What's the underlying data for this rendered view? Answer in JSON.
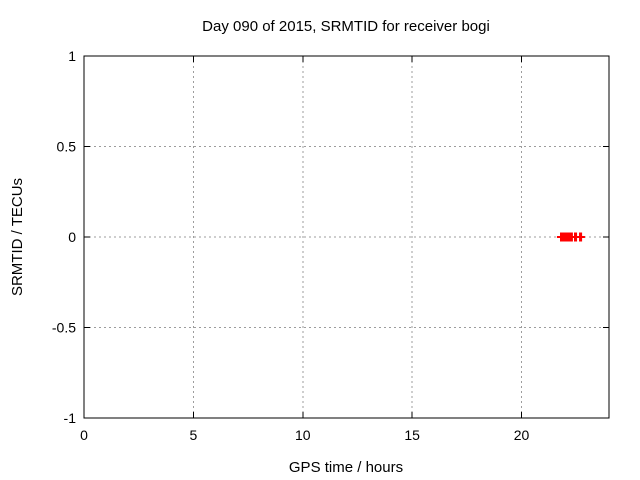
{
  "page": {
    "background": "#ffffff"
  },
  "chart_data": {
    "type": "scatter",
    "title": "Day 090 of 2015, SRMTID for receiver bogi",
    "xlabel": "GPS time / hours",
    "ylabel": "SRMTID / TECUs",
    "xlim": [
      0,
      24
    ],
    "ylim": [
      -1,
      1
    ],
    "xticks": [
      0,
      5,
      10,
      15,
      20
    ],
    "xtick_labels": [
      "0",
      "5",
      "10",
      "15",
      "20"
    ],
    "yticks": [
      1,
      0.5,
      0,
      -0.5,
      -1
    ],
    "ytick_labels": [
      "1",
      "0.5",
      "0",
      "-0.5",
      "-1"
    ],
    "grid": true,
    "grid_style": "dotted",
    "legend": "none",
    "axis_color": "#000000",
    "grid_color": "#9c9c9c",
    "background_color": "#ffffff",
    "series": [
      {
        "name": "SRMTID",
        "color": "#ff0000",
        "marker": "filled-square-with-errorbar",
        "y": 0.0,
        "point_clusters": [
          {
            "x_min": 21.76,
            "x_max": 22.35,
            "y": 0.0
          },
          {
            "x_min": 22.4,
            "x_max": 22.54,
            "y": 0.0
          },
          {
            "x_min": 22.63,
            "x_max": 22.77,
            "y": 0.0
          }
        ],
        "errorbar_extent": {
          "x_min": 21.62,
          "x_max": 22.9,
          "y": 0.0
        }
      }
    ]
  }
}
